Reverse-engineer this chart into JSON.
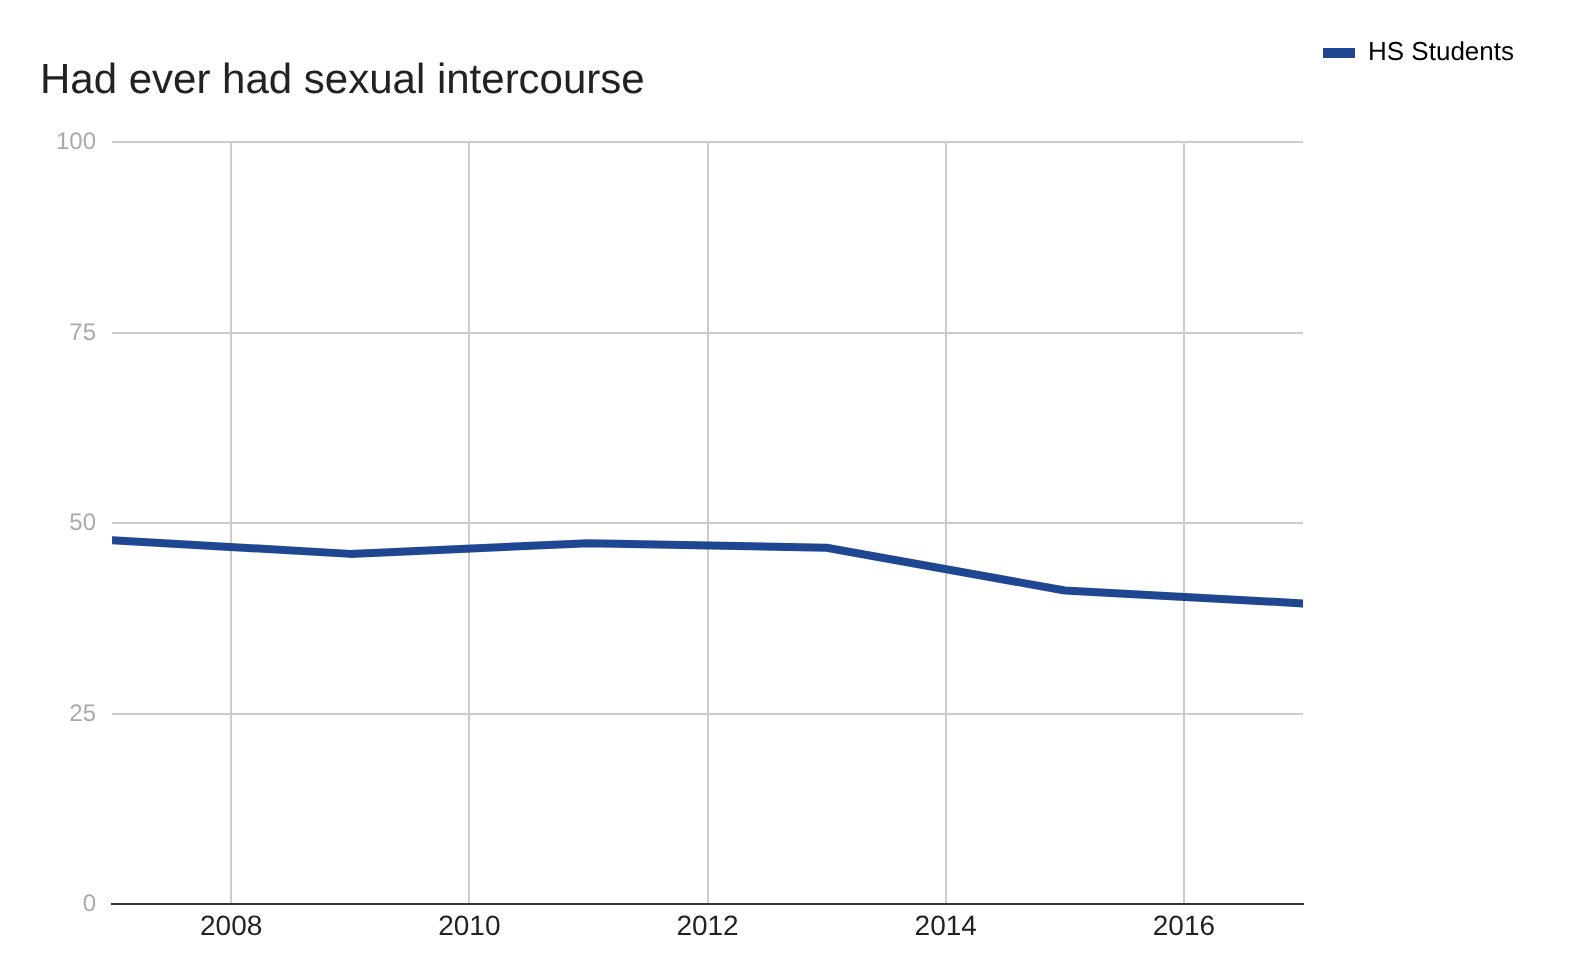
{
  "chart_data": {
    "type": "line",
    "title": "Had ever had sexual intercourse",
    "x": [
      2007,
      2009,
      2011,
      2013,
      2015,
      2017
    ],
    "series": [
      {
        "name": "HS Students",
        "color": "#1f4690",
        "values": [
          47.8,
          46.0,
          47.4,
          46.8,
          41.2,
          39.5
        ]
      }
    ],
    "xlim": [
      2007,
      2017
    ],
    "xticks": [
      2008,
      2010,
      2012,
      2014,
      2016
    ],
    "ylim": [
      0,
      100
    ],
    "yticks": [
      0,
      25,
      50,
      75,
      100
    ],
    "grid": true,
    "legend": "top right",
    "marker": "none",
    "line_style": "solid"
  }
}
